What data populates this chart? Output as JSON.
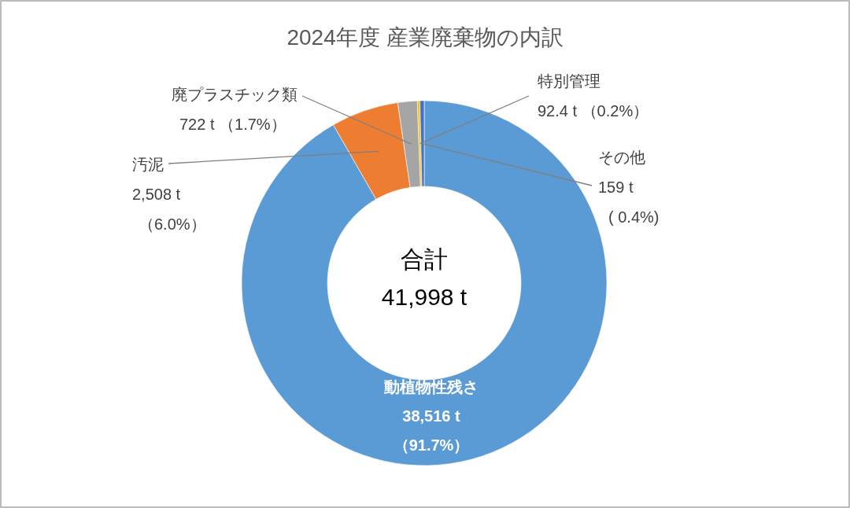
{
  "chart_data": {
    "type": "donut",
    "title": "2024年度 産業廃棄物の内訳",
    "categories": [
      "動植物性残さ",
      "汚泥",
      "廃プラスチック類",
      "特別管理",
      "その他"
    ],
    "values": [
      38516,
      2508,
      722,
      92.4,
      159
    ],
    "colors": [
      "#5b9bd5",
      "#ed7d31",
      "#a5a5a5",
      "#ffc000",
      "#4472c4"
    ],
    "value_labels": [
      "38,516 t\n（91.7%）",
      "2,508 t\n（6.0%）",
      "722 t （1.7%）",
      "92.4 t （0.2%）",
      "159 t\n( 0.4%)"
    ],
    "annotations": [
      "合計",
      "41,998 t"
    ]
  }
}
